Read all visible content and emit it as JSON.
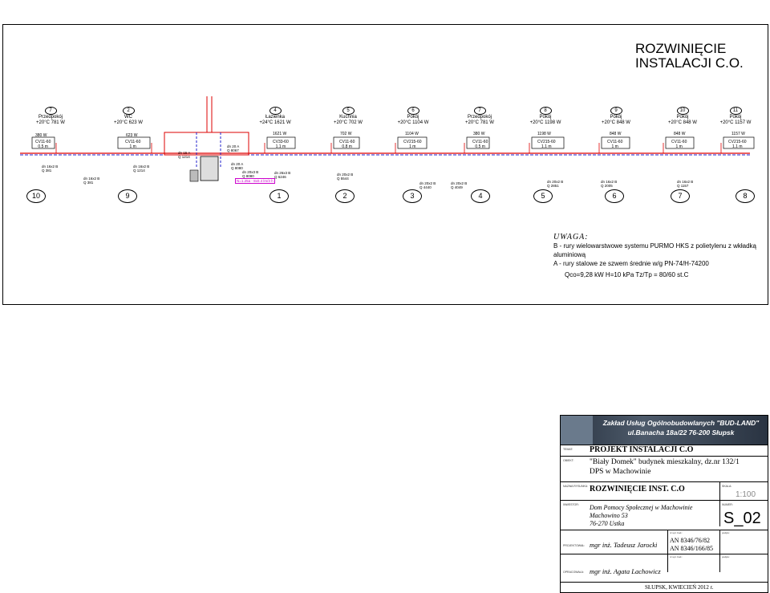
{
  "title": {
    "line1": "ROZWINIĘCIE",
    "line2": "INSTALACJI  C.O."
  },
  "rooms": [
    {
      "num": "7",
      "name": "Przedpokój",
      "temp": "+20°C 781 W"
    },
    {
      "num": "2",
      "name": "WC",
      "temp": "+20°C 623 W"
    },
    {
      "num": "4",
      "name": "Łazienka",
      "temp": "+24°C 1621 W"
    },
    {
      "num": "5",
      "name": "Kuchnia",
      "temp": "+20°C 702 W"
    },
    {
      "num": "6",
      "name": "Pokój",
      "temp": "+20°C 1104 W"
    },
    {
      "num": "7",
      "name": "Przedpokój",
      "temp": "+20°C 781 W"
    },
    {
      "num": "8",
      "name": "Pokój",
      "temp": "+20°C 1198 W"
    },
    {
      "num": "9",
      "name": "Pokój",
      "temp": "+20°C 848 W"
    },
    {
      "num": "10",
      "name": "Pokój",
      "temp": "+20°C 848 W"
    },
    {
      "num": "11",
      "name": "Pokój",
      "temp": "+20°C 1157 W"
    }
  ],
  "radiators": [
    {
      "power": "380 W",
      "type": "CV11-60",
      "len": "0.5 m"
    },
    {
      "power": "623 W",
      "type": "CV11-60",
      "len": "1 m"
    },
    {
      "power": "1621 W",
      "type": "CV33-60",
      "len": "1.1 m"
    },
    {
      "power": "702 W",
      "type": "CV11-60",
      "len": "0.8 m"
    },
    {
      "power": "1104 W",
      "type": "CV215-60",
      "len": "1 m"
    },
    {
      "power": "380 W",
      "type": "CV11-60",
      "len": "0.5 m"
    },
    {
      "power": "1198 W",
      "type": "CV215-60",
      "len": "1.1 m"
    },
    {
      "power": "848 W",
      "type": "CV11-60",
      "len": "1 m"
    },
    {
      "power": "848 W",
      "type": "CV11-60",
      "len": "1 m"
    },
    {
      "power": "1157 W",
      "type": "CV215-60",
      "len": "1.1 m"
    }
  ],
  "pipe_labels": [
    "dn 16x2 B\nQ 381",
    "dn 16x2 B\nQ 381",
    "dn 16x2 B\nQ 1214",
    "dn 15 A\nQ 1214",
    "dn 20 A\nQ 8067",
    "dn 20 A\nQ 8080",
    "dn 20x3 B\nQ 8080",
    "dn 26x3 B\nQ 6246",
    "dn 20x2 B\nQ 5544",
    "dn 20x2 B\nQ 4440",
    "dn 20x2 B\nQ 4049",
    "dn 20x2 B\nQ 2851",
    "dn 16x2 B\nQ 2005",
    "dn 16x2 B\nQ 1157"
  ],
  "markers": [
    "10",
    "9",
    "1",
    "2",
    "3",
    "4",
    "5",
    "6",
    "7",
    "8"
  ],
  "boiler_note": "N=1.25a  - 8x0.4 lm/3 h",
  "notes": {
    "head": "UWAGA:",
    "lines": [
      "B  - rury wielowarstwowe systemu PURMO HKS z polietylenu z wkładką aluminiową",
      "A  - rury stalowe ze szwem średnie w/g PN-74/H-74200"
    ],
    "params": "Qco=9,28 kW    H=10 kPa   Tz/Tp = 80/60 st.C"
  },
  "titleblock": {
    "company1": "Zakład Usług Ogólnobudowlanych \"BUD-LAND\"",
    "company2": "ul.Banacha 18a/22  76-200 Słupsk",
    "temat_label": "TEMAT:",
    "temat": "PROJEKT INSTALACJI C.O",
    "obiekt_label": "OBIEKT:",
    "obiekt1": "\"Biały Domek\" budynek mieszkalny, dz.nr 132/1",
    "obiekt2": "DPS w Machowinie",
    "nazwa_label": "NAZWA RYSUNKU:",
    "nazwa": "ROZWINIĘCIE INST. C.O",
    "skala_label": "SKALA:",
    "skala": "1:100",
    "inwestor_label": "INWESTOR:",
    "inwestor1": "Dom Pomocy Społecznej w Machowinie",
    "inwestor2": "Machowino 53",
    "inwestor3": "76-270 Ustka",
    "numer_label": "NUMER:",
    "numer": "S_02",
    "projektowal_label": "PROJEKTOWAŁ:",
    "projektowal": "mgr inż. Tadeusz Jarocki",
    "upr_label": "nr upr. bud.:",
    "upr1": "AN 8346/76/82",
    "upr2": "AN 8346/166/85",
    "podpis_label": "podpis:",
    "opracowala_label": "OPRACOWAŁA:",
    "opracowala": "mgr inż. Agata Lachowicz",
    "place_date": "SŁUPSK,  KWIECIEŃ 2012 r."
  }
}
